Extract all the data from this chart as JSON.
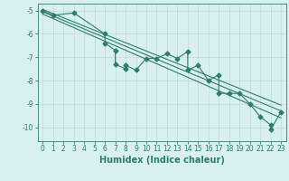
{
  "title": "",
  "xlabel": "Humidex (Indice chaleur)",
  "xlim": [
    -0.5,
    23.5
  ],
  "ylim": [
    -10.6,
    -4.7
  ],
  "yticks": [
    -10,
    -9,
    -8,
    -7,
    -6,
    -5
  ],
  "xticks": [
    0,
    1,
    2,
    3,
    4,
    5,
    6,
    7,
    8,
    9,
    10,
    11,
    12,
    13,
    14,
    15,
    16,
    17,
    18,
    19,
    20,
    21,
    22,
    23
  ],
  "scatter_x": [
    0,
    1,
    3,
    6,
    6,
    7,
    7,
    8,
    8,
    9,
    10,
    11,
    12,
    13,
    14,
    14,
    15,
    16,
    17,
    17,
    18,
    19,
    20,
    21,
    22,
    22,
    23
  ],
  "scatter_y": [
    -5.0,
    -5.2,
    -5.1,
    -6.0,
    -6.4,
    -6.7,
    -7.3,
    -7.5,
    -7.35,
    -7.55,
    -7.05,
    -7.05,
    -6.85,
    -7.05,
    -6.75,
    -7.55,
    -7.35,
    -8.0,
    -7.75,
    -8.55,
    -8.55,
    -8.55,
    -9.0,
    -9.55,
    -9.9,
    -10.1,
    -9.35
  ],
  "line1_x": [
    0,
    23
  ],
  "line1_y": [
    -5.05,
    -9.3
  ],
  "line2_x": [
    0,
    23
  ],
  "line2_y": [
    -5.15,
    -9.6
  ],
  "line3_x": [
    0,
    23
  ],
  "line3_y": [
    -4.95,
    -9.05
  ],
  "color": "#2d7d6e",
  "bg_color": "#d8f0ee",
  "grid_color": "#c0dcd8",
  "marker": "D",
  "markersize": 2.5,
  "linewidth": 0.8,
  "tick_fontsize": 5.5,
  "label_fontsize": 7.0
}
